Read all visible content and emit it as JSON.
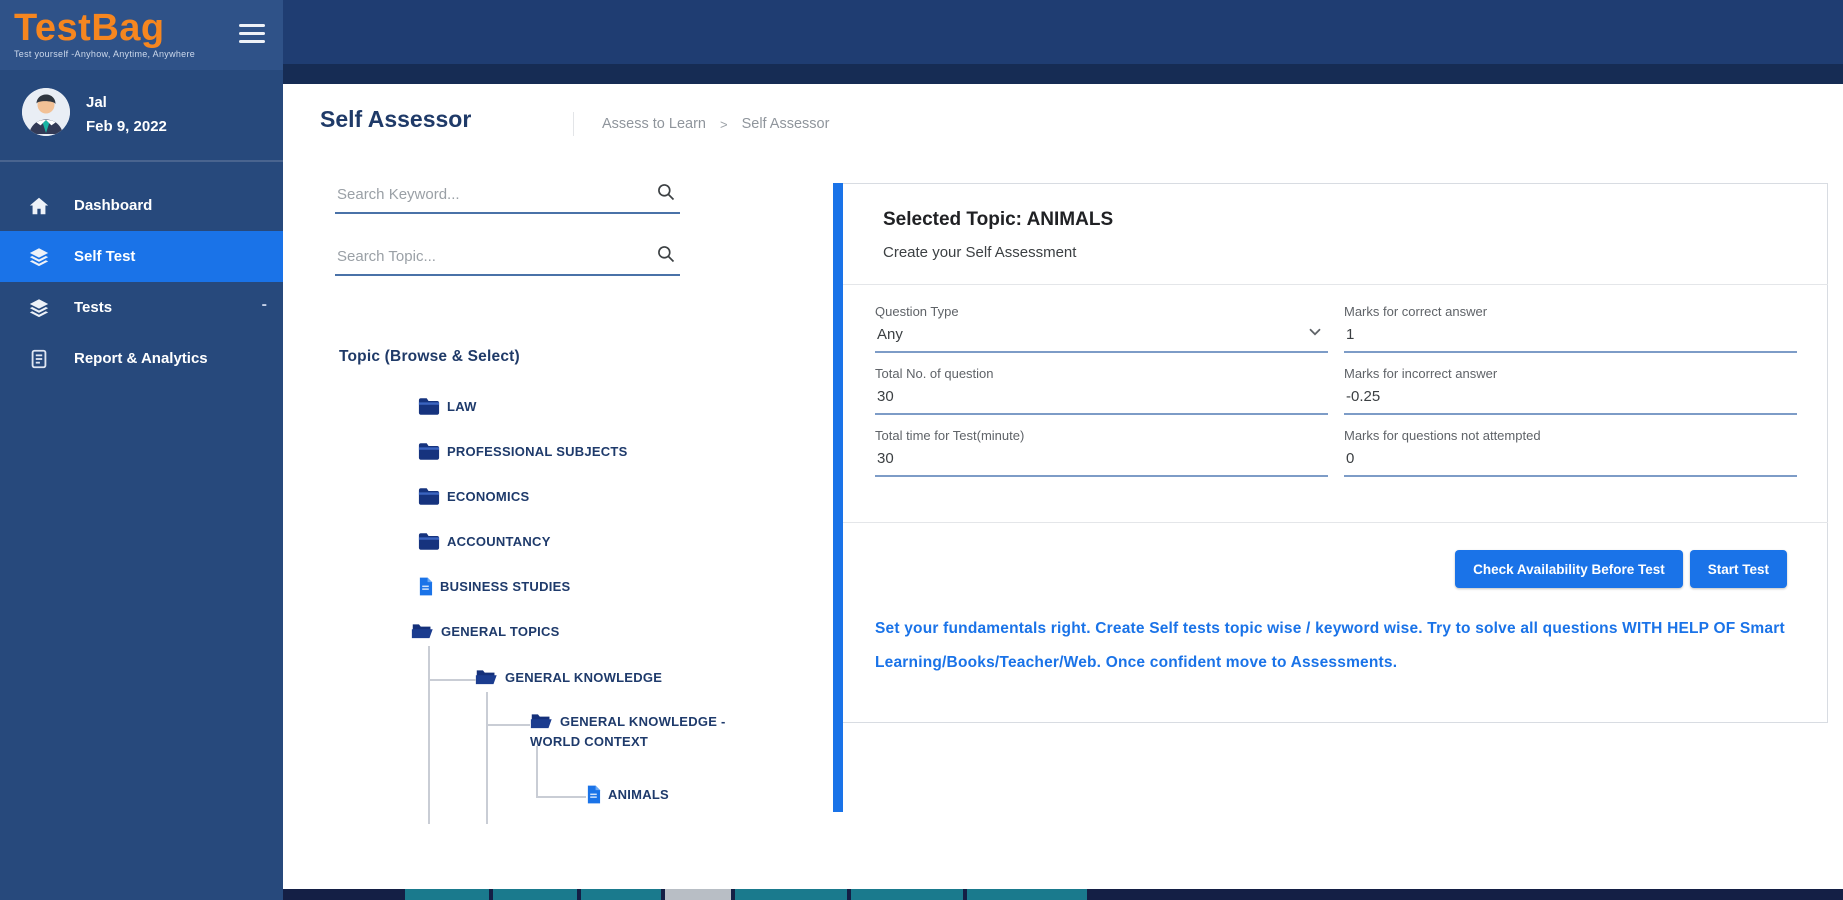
{
  "brand": {
    "name": "TestBag",
    "tagline": "Test yourself -Anyhow, Anytime, Anywhere"
  },
  "user": {
    "name": "Jal",
    "date": "Feb 9, 2022"
  },
  "sidebar": {
    "items": [
      {
        "label": "Dashboard",
        "icon": "home-icon",
        "active": false,
        "caret": ""
      },
      {
        "label": "Self Test",
        "icon": "layers-icon",
        "active": true,
        "caret": ""
      },
      {
        "label": "Tests",
        "icon": "layers-icon",
        "active": false,
        "caret": "-"
      },
      {
        "label": "Report & Analytics",
        "icon": "report-icon",
        "active": false,
        "caret": ""
      }
    ]
  },
  "topbar": {
    "power_icon": "power-icon"
  },
  "header": {
    "title": "Self Assessor",
    "breadcrumb": [
      "Assess to Learn",
      "Self Assessor"
    ],
    "separator": ">"
  },
  "search": {
    "keyword_placeholder": "Search Keyword...",
    "topic_placeholder": "Search Topic..."
  },
  "topic_tree": {
    "title": "Topic (Browse & Select)",
    "items": [
      {
        "label": "LAW",
        "icon": "folder-icon",
        "level": 1
      },
      {
        "label": "PROFESSIONAL SUBJECTS",
        "icon": "folder-icon",
        "level": 1
      },
      {
        "label": "ECONOMICS",
        "icon": "folder-icon",
        "level": 1
      },
      {
        "label": "ACCOUNTANCY",
        "icon": "folder-icon",
        "level": 1
      },
      {
        "label": "BUSINESS STUDIES",
        "icon": "file-icon",
        "level": 1
      },
      {
        "label": "GENERAL TOPICS",
        "icon": "folder-open-icon",
        "level": 1
      },
      {
        "label": "GENERAL KNOWLEDGE",
        "icon": "folder-open-icon",
        "level": 2
      },
      {
        "label": "GENERAL KNOWLEDGE - WORLD CONTEXT",
        "icon": "folder-open-icon",
        "level": 3
      },
      {
        "label": "ANIMALS",
        "icon": "file-icon",
        "level": 4
      }
    ]
  },
  "panel": {
    "title": "Selected Topic: ANIMALS",
    "subtitle": "Create your Self Assessment",
    "fields": [
      {
        "name": "question-type",
        "label": "Question Type",
        "value": "Any",
        "select": true
      },
      {
        "name": "marks-correct",
        "label": "Marks for correct answer",
        "value": "1",
        "select": false
      },
      {
        "name": "total-questions",
        "label": "Total No. of question",
        "value": "30",
        "select": false
      },
      {
        "name": "marks-incorrect",
        "label": "Marks for incorrect answer",
        "value": "-0.25",
        "select": false
      },
      {
        "name": "total-time",
        "label": "Total time for Test(minute)",
        "value": "30",
        "select": false
      },
      {
        "name": "marks-not-attempted",
        "label": "Marks for questions not attempted",
        "value": "0",
        "select": false
      }
    ],
    "buttons": {
      "check": "Check Availability Before Test",
      "start": "Start Test"
    },
    "note": "Set your fundamentals right. Create Self tests topic wise / keyword wise. Try to solve all questions WITH HELP OF Smart Learning/Books/Teacher/Web. Once confident move to Assessments."
  },
  "colors": {
    "accent": "#1a73e8",
    "navy": "#1f3d72",
    "sidebar": "#27497c",
    "logo_orange": "#f6861f",
    "strip_teal": "#1a7a8d",
    "strip_navy": "#141f45",
    "strip_gray": "#b8bec5"
  }
}
